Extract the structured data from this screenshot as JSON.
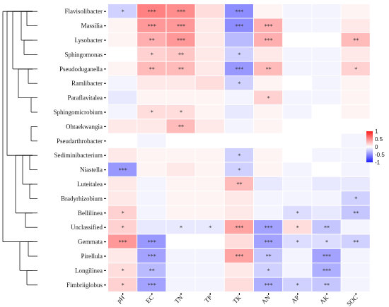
{
  "chart_data": {
    "type": "heatmap",
    "rows": [
      "Flavisolibacter",
      "Massilia",
      "Lysobacter",
      "Sphingomonas",
      "Pseudoduganella",
      "Ramlibacter",
      "Paraflavitalea",
      "Sphingomicrobium",
      "Ohtaekwangia",
      "Pseudarthrobacter",
      "Sediminibacterium",
      "Niastella",
      "Luteitalea",
      "Bradyrhizobium",
      "Bellilinea",
      "Unclassified",
      "Gemmata",
      "Pirellula",
      "Longilinea",
      "Fimbriiglobus"
    ],
    "columns": [
      "pH",
      "EC",
      "TN",
      "TP",
      "TK",
      "AN",
      "AP",
      "AK",
      "SOC"
    ],
    "values": [
      [
        -0.2,
        0.55,
        0.5,
        0.15,
        -0.5,
        0.05,
        -0.05,
        -0.05,
        0.05
      ],
      [
        0.05,
        0.45,
        0.45,
        0.1,
        -0.5,
        0.35,
        -0.05,
        -0.05,
        0.1
      ],
      [
        0.05,
        0.35,
        0.45,
        0.1,
        -0.3,
        0.35,
        0.0,
        0.0,
        0.3
      ],
      [
        0.0,
        0.2,
        0.25,
        0.1,
        -0.2,
        0.1,
        -0.05,
        -0.05,
        0.1
      ],
      [
        0.05,
        0.3,
        0.3,
        0.1,
        -0.45,
        0.3,
        -0.05,
        -0.05,
        0.2
      ],
      [
        -0.05,
        0.1,
        0.1,
        0.15,
        -0.2,
        0.05,
        0.0,
        -0.05,
        0.05
      ],
      [
        -0.1,
        0.05,
        0.05,
        0.05,
        -0.05,
        0.2,
        -0.05,
        -0.05,
        0.05
      ],
      [
        -0.05,
        0.15,
        0.15,
        0.05,
        -0.1,
        0.05,
        -0.05,
        0.0,
        0.05
      ],
      [
        0.1,
        0.1,
        0.3,
        0.1,
        -0.05,
        0.05,
        0.0,
        0.0,
        0.0
      ],
      [
        0.0,
        -0.05,
        0.0,
        0.0,
        0.0,
        0.0,
        0.0,
        0.0,
        -0.05
      ],
      [
        0.1,
        0.05,
        0.05,
        0.05,
        -0.2,
        0.05,
        0.0,
        -0.05,
        -0.05
      ],
      [
        -0.45,
        0.05,
        0.1,
        0.05,
        -0.2,
        0.05,
        -0.05,
        0.0,
        -0.05
      ],
      [
        0.1,
        -0.05,
        0.05,
        0.05,
        0.3,
        -0.1,
        -0.05,
        -0.1,
        -0.1
      ],
      [
        0.1,
        -0.05,
        0.05,
        0.05,
        0.1,
        -0.05,
        -0.05,
        -0.05,
        -0.2
      ],
      [
        0.2,
        -0.05,
        0.05,
        0.05,
        0.1,
        -0.05,
        -0.15,
        -0.1,
        -0.25
      ],
      [
        0.2,
        -0.1,
        -0.1,
        -0.1,
        0.4,
        -0.4,
        0.15,
        -0.25,
        -0.05
      ],
      [
        0.45,
        -0.45,
        0.0,
        0.0,
        0.15,
        -0.4,
        -0.15,
        -0.15,
        -0.2
      ],
      [
        0.1,
        -0.4,
        -0.05,
        -0.05,
        0.4,
        -0.25,
        -0.05,
        -0.4,
        -0.05
      ],
      [
        0.15,
        -0.3,
        -0.05,
        -0.05,
        0.1,
        -0.2,
        -0.05,
        -0.35,
        -0.05
      ],
      [
        0.2,
        -0.4,
        -0.05,
        -0.05,
        0.15,
        -0.35,
        -0.2,
        -0.25,
        -0.05
      ]
    ],
    "significance": [
      [
        "*",
        "***",
        "***",
        "",
        "***",
        "",
        "",
        "",
        ""
      ],
      [
        "",
        "***",
        "***",
        "",
        "***",
        "***",
        "",
        "",
        ""
      ],
      [
        "",
        "**",
        "***",
        "",
        "",
        "***",
        "",
        "",
        "**"
      ],
      [
        "",
        "*",
        "**",
        "",
        "*",
        "",
        "",
        "",
        ""
      ],
      [
        "",
        "**",
        "**",
        "",
        "***",
        "**",
        "",
        "",
        "*"
      ],
      [
        "",
        "",
        "",
        "",
        "*",
        "",
        "",
        "",
        ""
      ],
      [
        "",
        "",
        "",
        "",
        "",
        "*",
        "",
        "",
        ""
      ],
      [
        "",
        "*",
        "*",
        "",
        "",
        "",
        "",
        "",
        ""
      ],
      [
        "",
        "",
        "**",
        "",
        "",
        "",
        "",
        "",
        ""
      ],
      [
        "",
        "",
        "",
        "",
        "",
        "",
        "",
        "",
        ""
      ],
      [
        "",
        "",
        "",
        "",
        "*",
        "",
        "",
        "",
        ""
      ],
      [
        "***",
        "",
        "",
        "",
        "*",
        "",
        "",
        "",
        ""
      ],
      [
        "",
        "",
        "",
        "",
        "**",
        "",
        "",
        "",
        ""
      ],
      [
        "",
        "",
        "",
        "",
        "",
        "",
        "",
        "",
        "*"
      ],
      [
        "*",
        "",
        "",
        "",
        "",
        "",
        "*",
        "",
        "**"
      ],
      [
        "*",
        "",
        "*",
        "*",
        "***",
        "***",
        "*",
        "**",
        ""
      ],
      [
        "***",
        "***",
        "",
        "",
        "",
        "***",
        "*",
        "*",
        "**"
      ],
      [
        "",
        "***",
        "",
        "",
        "***",
        "**",
        "",
        "***",
        ""
      ],
      [
        "*",
        "**",
        "",
        "",
        "",
        "*",
        "",
        "***",
        ""
      ],
      [
        "*",
        "***",
        "",
        "",
        "",
        "***",
        "*",
        "**",
        ""
      ]
    ],
    "color_scale": {
      "min": -1,
      "max": 1,
      "low": "#1a1aff",
      "mid": "#ffffff",
      "high": "#ff1a1a"
    },
    "legend_ticks": [
      "1",
      "0.5",
      "0",
      "-0.5",
      "-1"
    ],
    "legend_position": "right",
    "dendrogram": "left"
  }
}
